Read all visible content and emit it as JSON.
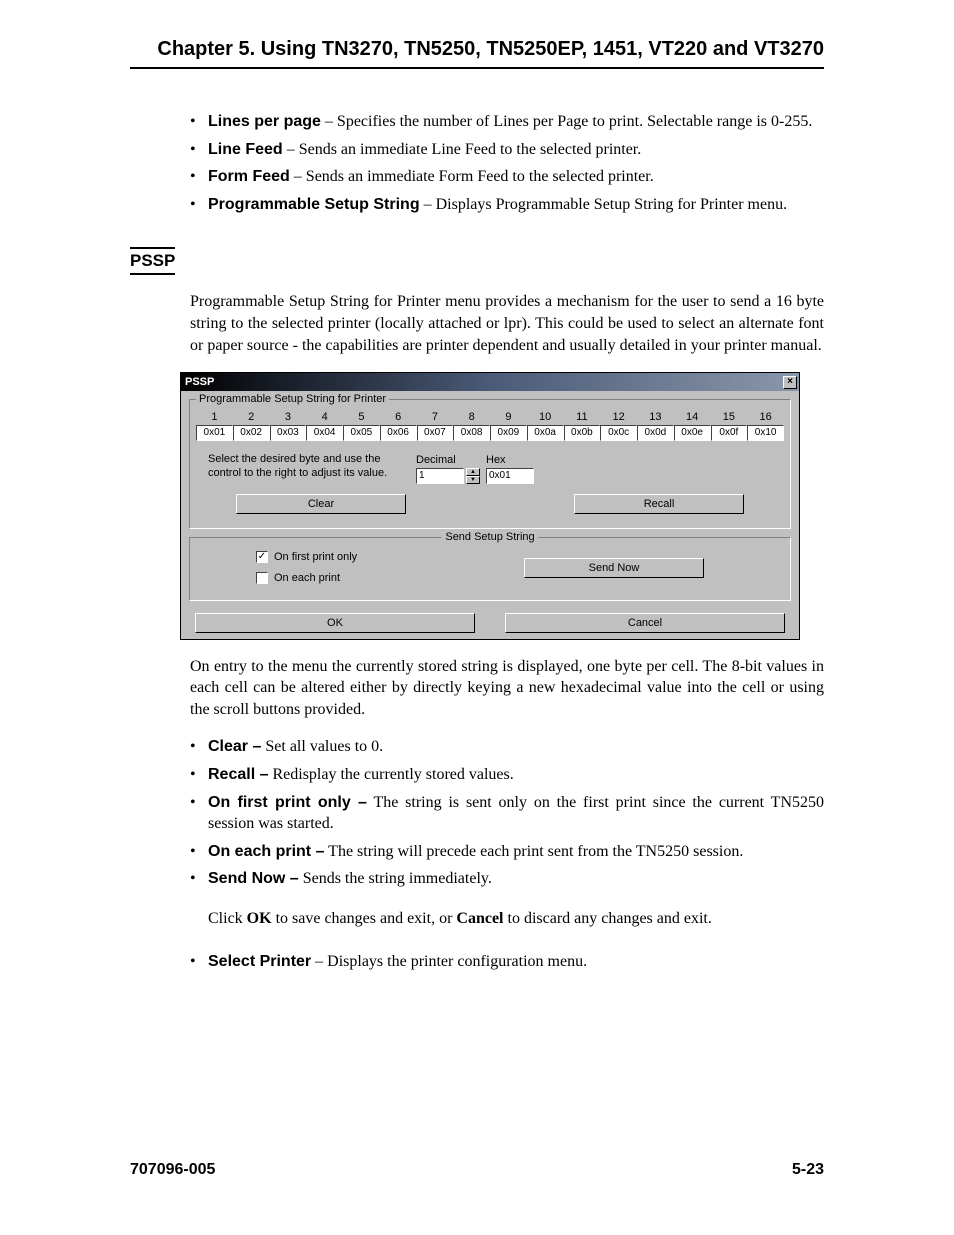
{
  "header": {
    "chapter_title": "Chapter 5.  Using  TN3270, TN5250, TN5250EP, 1451, VT220 and VT3270"
  },
  "top_bullets": [
    {
      "term": "Lines per page",
      "desc": " – Specifies the number of Lines per Page to print. Selectable range is 0-255."
    },
    {
      "term": "Line Feed",
      "desc": " – Sends an immediate Line Feed to the selected printer."
    },
    {
      "term": "Form Feed",
      "desc": " – Sends an immediate Form Feed to the selected printer."
    },
    {
      "term": "Programmable Setup String",
      "desc": " – Displays Programmable Setup String for Printer menu."
    }
  ],
  "section": {
    "tag": "PSSP",
    "intro": "Programmable Setup String for Printer menu provides a mechanism for the user to send a 16 byte string to the selected printer (locally attached or lpr). This could be used to select an alternate font or paper source - the capabilities are printer dependent and usually detailed in your printer manual."
  },
  "dialog": {
    "title": "PSSP",
    "group_legend": "Programmable Setup String for Printer",
    "byte_numbers": [
      "1",
      "2",
      "3",
      "4",
      "5",
      "6",
      "7",
      "8",
      "9",
      "10",
      "11",
      "12",
      "13",
      "14",
      "15",
      "16"
    ],
    "byte_values": [
      "0x01",
      "0x02",
      "0x03",
      "0x04",
      "0x05",
      "0x06",
      "0x07",
      "0x08",
      "0x09",
      "0x0a",
      "0x0b",
      "0x0c",
      "0x0d",
      "0x0e",
      "0x0f",
      "0x10"
    ],
    "instruction": "Select the desired byte and use the control to the right to adjust its value.",
    "decimal_label": "Decimal",
    "hex_label": "Hex",
    "decimal_value": "1",
    "hex_value": "0x01",
    "clear_btn": "Clear",
    "recall_btn": "Recall",
    "send_group_legend": "Send Setup String",
    "on_first_label": "On first print only",
    "on_first_checked": true,
    "on_each_label": "On each print",
    "on_each_checked": false,
    "send_now_btn": "Send Now",
    "ok_btn": "OK",
    "cancel_btn": "Cancel"
  },
  "after_dialog": "On entry to the menu the currently stored string is displayed, one byte per cell. The 8-bit values in each cell can be altered either by directly keying a new hexadecimal value into the cell or using the scroll buttons provided.",
  "after_bullets": [
    {
      "term": "Clear –",
      "desc": " Set all values to 0."
    },
    {
      "term": "Recall –",
      "desc": " Redisplay the currently stored values."
    },
    {
      "term": "On first print only –",
      "desc": " The string is sent only on the first print since the current TN5250 session was started."
    },
    {
      "term": "On each print –",
      "desc": " The string will precede each print sent from the TN5250 session."
    },
    {
      "term": "Send Now –",
      "desc": " Sends the string immediately."
    }
  ],
  "click_line": {
    "pre": "Click ",
    "ok": "OK",
    "mid": " to save changes and exit, or ",
    "cancel": "Cancel",
    "post": " to discard any changes and exit."
  },
  "final_bullet": {
    "term": "Select Printer",
    "desc": " – Displays the printer configuration menu."
  },
  "footer": {
    "left": "707096-005",
    "right": "5-23"
  },
  "colors": {
    "dialog_bg": "#c0c0c0",
    "titlebar_text": "#ffffff"
  }
}
